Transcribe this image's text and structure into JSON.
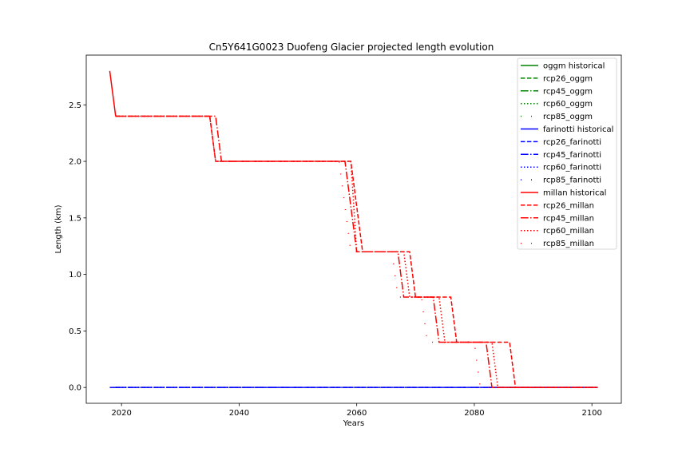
{
  "chart_data": {
    "type": "line",
    "title": "Cn5Y641G0023 Duofeng Glacier projected length evolution",
    "xlabel": "Years",
    "ylabel": "Length (km)",
    "xlim": [
      2014,
      2105
    ],
    "ylim": [
      -0.14,
      2.94
    ],
    "xticks": [
      2020,
      2040,
      2060,
      2080,
      2100
    ],
    "yticks": [
      0.0,
      0.5,
      1.0,
      1.5,
      2.0,
      2.5
    ],
    "grid": false,
    "legend_position": "top-right",
    "series": [
      {
        "name": "oggm historical",
        "color": "#008000",
        "style": "solid",
        "points": []
      },
      {
        "name": "rcp26_oggm",
        "color": "#008000",
        "style": "dashed",
        "points": []
      },
      {
        "name": "rcp45_oggm",
        "color": "#008000",
        "style": "dashdot",
        "points": []
      },
      {
        "name": "rcp60_oggm",
        "color": "#008000",
        "style": "dotted",
        "points": []
      },
      {
        "name": "rcp85_oggm",
        "color": "#008000",
        "style": "sparse",
        "points": []
      },
      {
        "name": "farinotti historical",
        "color": "#0000ff",
        "style": "solid",
        "points": [
          [
            2018,
            0.0
          ],
          [
            2019,
            0.0
          ]
        ]
      },
      {
        "name": "rcp26_farinotti",
        "color": "#0000ff",
        "style": "dashed",
        "points": [
          [
            2019,
            0.0
          ],
          [
            2101,
            0.0
          ]
        ]
      },
      {
        "name": "rcp45_farinotti",
        "color": "#0000ff",
        "style": "dashdot",
        "points": [
          [
            2019,
            0.0
          ],
          [
            2101,
            0.0
          ]
        ]
      },
      {
        "name": "rcp60_farinotti",
        "color": "#0000ff",
        "style": "dotted",
        "points": [
          [
            2019,
            0.0
          ],
          [
            2101,
            0.0
          ]
        ]
      },
      {
        "name": "rcp85_farinotti",
        "color": "#0000ff",
        "style": "sparse",
        "points": [
          [
            2019,
            0.0
          ],
          [
            2101,
            0.0
          ]
        ]
      },
      {
        "name": "millan historical",
        "color": "#ff0000",
        "style": "solid",
        "points": [
          [
            2018,
            2.8
          ],
          [
            2019,
            2.4
          ]
        ]
      },
      {
        "name": "rcp26_millan",
        "color": "#ff0000",
        "style": "dashed",
        "points": [
          [
            2019,
            2.4
          ],
          [
            2035,
            2.4
          ],
          [
            2036,
            2.0
          ],
          [
            2059,
            2.0
          ],
          [
            2061,
            1.2
          ],
          [
            2069,
            1.2
          ],
          [
            2070,
            0.8
          ],
          [
            2076,
            0.8
          ],
          [
            2077,
            0.4
          ],
          [
            2086,
            0.4
          ],
          [
            2087,
            0.0
          ],
          [
            2101,
            0.0
          ]
        ]
      },
      {
        "name": "rcp45_millan",
        "color": "#ff0000",
        "style": "dashdot",
        "points": [
          [
            2019,
            2.4
          ],
          [
            2036,
            2.4
          ],
          [
            2037,
            2.0
          ],
          [
            2058,
            2.0
          ],
          [
            2060,
            1.2
          ],
          [
            2067,
            1.2
          ],
          [
            2068,
            0.8
          ],
          [
            2073,
            0.8
          ],
          [
            2074,
            0.4
          ],
          [
            2082,
            0.4
          ],
          [
            2083,
            0.0
          ],
          [
            2101,
            0.0
          ]
        ]
      },
      {
        "name": "rcp60_millan",
        "color": "#ff0000",
        "style": "dotted",
        "points": [
          [
            2019,
            2.4
          ],
          [
            2035,
            2.4
          ],
          [
            2036,
            2.0
          ],
          [
            2059,
            2.0
          ],
          [
            2060,
            1.2
          ],
          [
            2068,
            1.2
          ],
          [
            2069,
            0.8
          ],
          [
            2074,
            0.8
          ],
          [
            2075,
            0.4
          ],
          [
            2083,
            0.4
          ],
          [
            2084,
            0.0
          ],
          [
            2101,
            0.0
          ]
        ]
      },
      {
        "name": "rcp85_millan",
        "color": "#ff0000",
        "style": "sparse",
        "points": [
          [
            2019,
            2.4
          ],
          [
            2035,
            2.4
          ],
          [
            2036,
            2.0
          ],
          [
            2057,
            2.0
          ],
          [
            2059,
            1.2
          ],
          [
            2066,
            1.2
          ],
          [
            2067,
            0.8
          ],
          [
            2071,
            0.8
          ],
          [
            2072,
            0.4
          ],
          [
            2080,
            0.4
          ],
          [
            2081,
            0.0
          ],
          [
            2101,
            0.0
          ]
        ]
      }
    ]
  }
}
